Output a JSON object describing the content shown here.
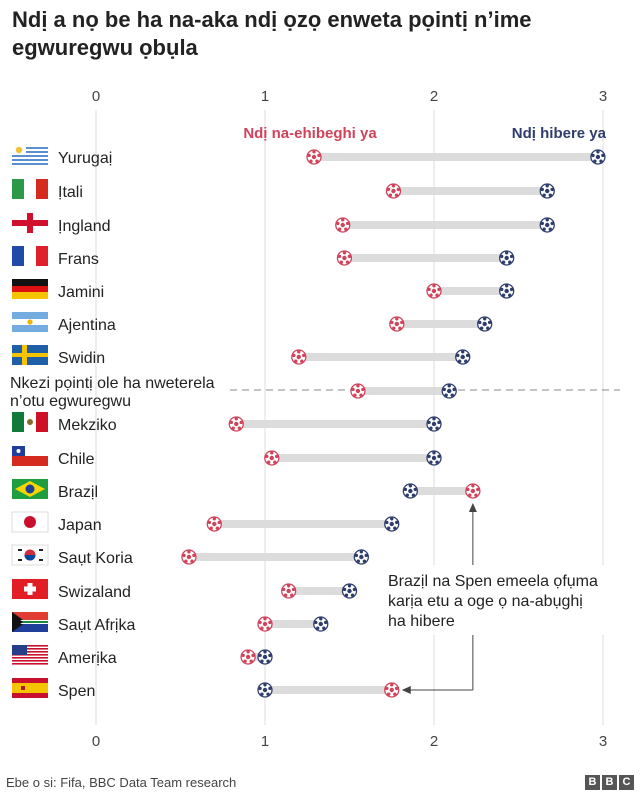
{
  "title": "Ndị a nọ be ha na-aka ndị ọzọ enweta pọintị n’ime egwuregwu ọbụla",
  "source": "Ebe o si: Fifa, BBC Data Team research",
  "logo": [
    "B",
    "B",
    "C"
  ],
  "chart_data": {
    "type": "dumbbell",
    "title": "Ndị a nọ be ha na-aka ndị ọzọ enweta pọintị n’ime egwuregwu ọbụla",
    "x_ticks": [
      0,
      1,
      2,
      3
    ],
    "xlim": [
      0,
      3
    ],
    "grid": true,
    "series": [
      {
        "name": "Ndị na-ehibeghi ya",
        "color": "#d1435b"
      },
      {
        "name": "Ndị hibere ya",
        "color": "#2e3d6b"
      }
    ],
    "rows": [
      {
        "label": "Yurugaị",
        "flag": "uruguay",
        "away": 1.29,
        "home": 2.97
      },
      {
        "label": "Ịtali",
        "flag": "italy",
        "away": 1.76,
        "home": 2.67
      },
      {
        "label": "Ịngland",
        "flag": "england",
        "away": 1.46,
        "home": 2.67
      },
      {
        "label": "Frans",
        "flag": "france",
        "away": 1.47,
        "home": 2.43
      },
      {
        "label": "Jamini",
        "flag": "germany",
        "away": 2.0,
        "home": 2.43
      },
      {
        "label": "Ajentina",
        "flag": "argentina",
        "away": 1.78,
        "home": 2.3
      },
      {
        "label": "Swidin",
        "flag": "sweden",
        "away": 1.2,
        "home": 2.17
      },
      {
        "label": "Nkezi pọintị ole ha nweterela n’otu egwuregwu",
        "flag": "",
        "away": 1.55,
        "home": 2.09
      },
      {
        "label": "Mekziko",
        "flag": "mexico",
        "away": 0.83,
        "home": 2.0
      },
      {
        "label": "Chile",
        "flag": "chile",
        "away": 1.04,
        "home": 2.0
      },
      {
        "label": "Brazịl",
        "flag": "brazil",
        "away": 2.23,
        "home": 1.86
      },
      {
        "label": "Japan",
        "flag": "japan",
        "away": 0.7,
        "home": 1.75
      },
      {
        "label": "Saụt Koria",
        "flag": "korea",
        "away": 0.55,
        "home": 1.57
      },
      {
        "label": "Swizaland",
        "flag": "switzerland",
        "away": 1.14,
        "home": 1.5
      },
      {
        "label": "Saụt Afrịka",
        "flag": "southafrica",
        "away": 1.0,
        "home": 1.33
      },
      {
        "label": "Amerịka",
        "flag": "usa",
        "away": 0.9,
        "home": 1.0
      },
      {
        "label": "Spen",
        "flag": "spain",
        "away": 1.75,
        "home": 1.0
      }
    ],
    "annotation": "Brazịl na Spen emeela ọfụma karịa etu a oge ọ na-abụghị ha hibere"
  }
}
